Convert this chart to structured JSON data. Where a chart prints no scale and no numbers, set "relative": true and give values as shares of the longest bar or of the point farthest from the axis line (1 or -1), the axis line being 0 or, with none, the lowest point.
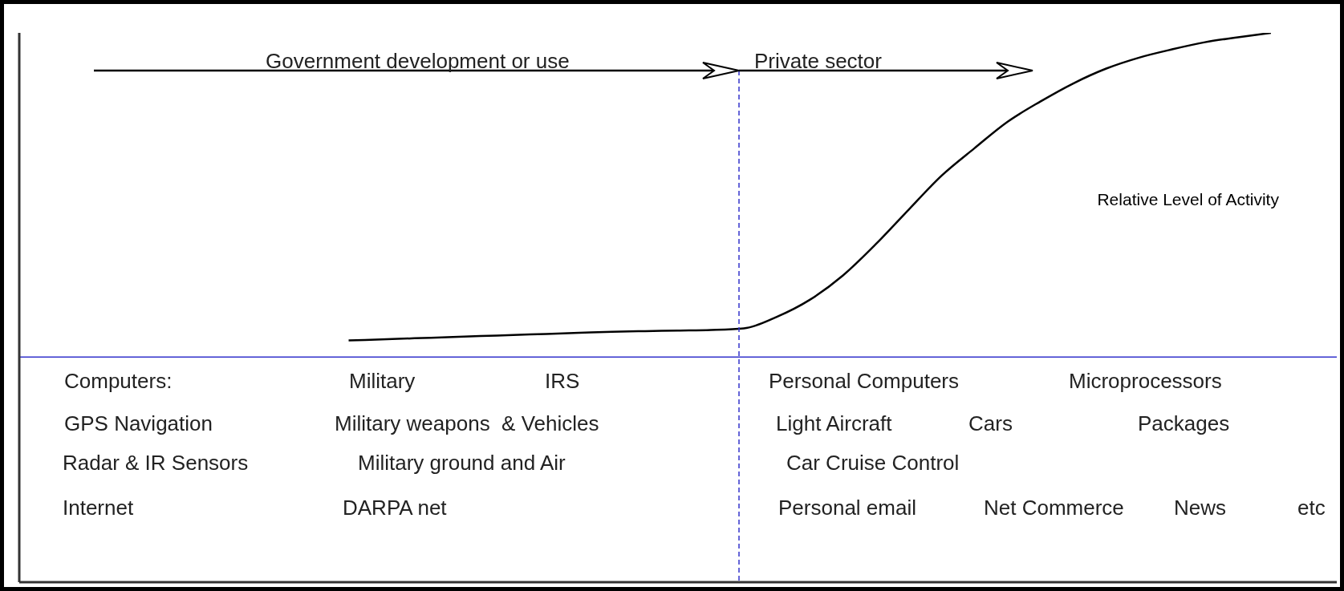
{
  "chart_data": {
    "type": "line",
    "relative": true,
    "categories": [
      null,
      null,
      null,
      null,
      null,
      null,
      null,
      null,
      null,
      null,
      null,
      null,
      null,
      null,
      null,
      null,
      null,
      null,
      null,
      null,
      null,
      null,
      null,
      null,
      null,
      null,
      null,
      null,
      null,
      null,
      null,
      null,
      null,
      null,
      null,
      null,
      null,
      null,
      null,
      null,
      null
    ],
    "series": [
      {
        "name": "Relative Level of Activity",
        "color": "#000000",
        "values": [
          null,
          null,
          null,
          null,
          null,
          null,
          null,
          null,
          null,
          null,
          0.44,
          0.442,
          0.444,
          0.446,
          0.448,
          0.45,
          0.452,
          0.454,
          0.456,
          0.457,
          0.458,
          0.459,
          0.462,
          0.483,
          0.514,
          0.558,
          0.615,
          0.678,
          0.74,
          0.79,
          0.838,
          0.875,
          0.908,
          0.935,
          0.955,
          0.97,
          0.983,
          0.992,
          1,
          null,
          null
        ]
      }
    ],
    "ref_lines": [
      {
        "axis": "y",
        "value": 0.41,
        "color": "#3333cc",
        "line_style": "solid"
      }
    ],
    "marker": "none",
    "line_style": "solid",
    "grid": false,
    "legend": false,
    "annotations": [
      "Government development or use",
      "Private sector",
      "Computers:",
      "Military",
      "IRS",
      "Personal Computers",
      "Microprocessors",
      "GPS Navigation",
      "Military weapons  & Vehicles",
      "Light Aircraft",
      "Cars",
      "Packages",
      "Radar & IR Sensors",
      "Military ground and Air",
      "Car Cruise Control",
      "Internet",
      "DARPA net",
      "Personal email",
      "Net Commerce",
      "News",
      "etc"
    ]
  }
}
